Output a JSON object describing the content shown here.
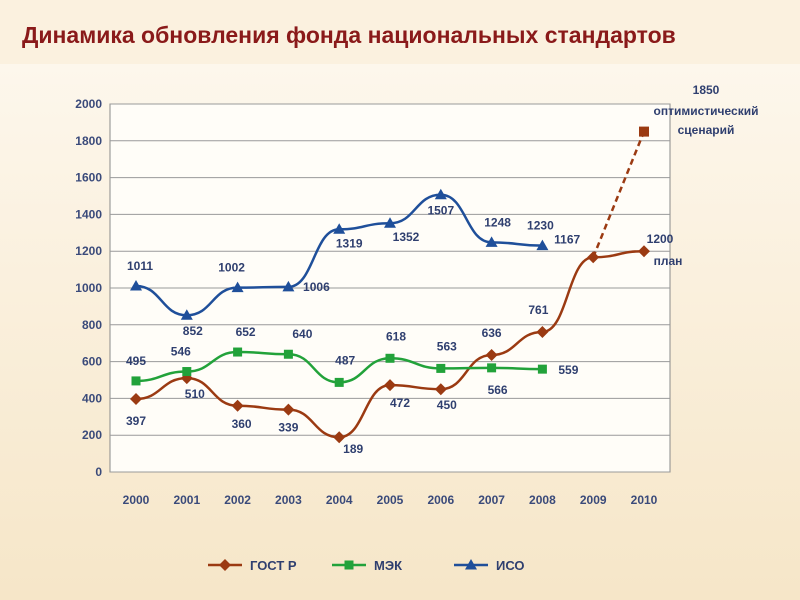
{
  "title": "Динамика обновления фонда национальных стандартов",
  "chart_data": {
    "type": "line",
    "title": "Динамика обновления фонда национальных стандартов",
    "categories": [
      "2000",
      "2001",
      "2002",
      "2003",
      "2004",
      "2005",
      "2006",
      "2007",
      "2008",
      "2009",
      "2010"
    ],
    "ylim": [
      0,
      2000
    ],
    "yticks": [
      "0",
      "200",
      "400",
      "600",
      "800",
      "1000",
      "1200",
      "1400",
      "1600",
      "1800",
      "2000"
    ],
    "grid": true,
    "legend_position": "bottom",
    "series": [
      {
        "name": "ГОСТ Р",
        "color": "#9b3a12",
        "marker": "diamond",
        "values": [
          397,
          510,
          360,
          339,
          189,
          472,
          450,
          636,
          761,
          1167,
          1200
        ],
        "labels": [
          "397",
          "510",
          "360",
          "339",
          "189",
          "472",
          "450",
          "636",
          "761",
          "1167",
          "1200"
        ]
      },
      {
        "name": "МЭК",
        "color": "#22a23a",
        "marker": "square",
        "values": [
          495,
          546,
          652,
          640,
          487,
          618,
          563,
          566,
          559,
          null,
          null
        ],
        "labels": [
          "495",
          "546",
          "652",
          "640",
          "487",
          "618",
          "563",
          "566",
          "559",
          "",
          ""
        ]
      },
      {
        "name": "ИСО",
        "color": "#1f4f9a",
        "marker": "triangle",
        "values": [
          1011,
          852,
          1002,
          1006,
          1319,
          1352,
          1507,
          1248,
          1230,
          null,
          null
        ],
        "labels": [
          "1011",
          "852",
          "1002",
          "1006",
          "1319",
          "1352",
          "1507",
          "1248",
          "1230",
          "",
          ""
        ]
      }
    ],
    "annotations": {
      "plan_label": "план",
      "optimistic": {
        "x": "2010",
        "value": 1850,
        "label_value": "1850",
        "line1": "оптимистический",
        "line2": "сценарий"
      }
    }
  }
}
